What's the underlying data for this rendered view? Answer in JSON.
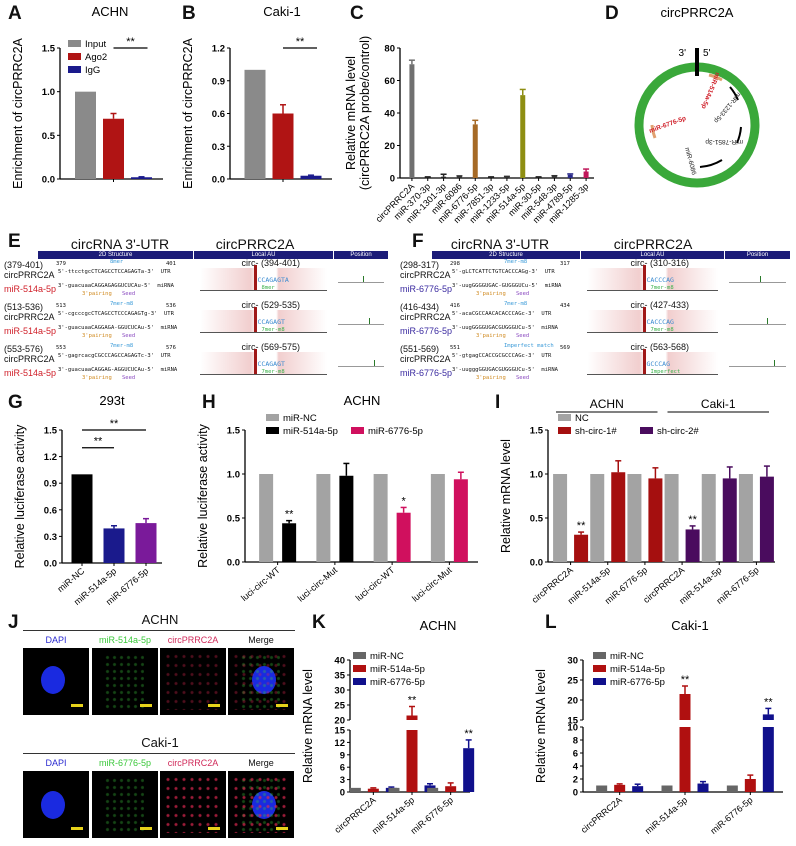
{
  "panel_letters": {
    "A": "A",
    "B": "B",
    "C": "C",
    "D": "D",
    "E": "E",
    "F": "F",
    "G": "G",
    "H": "H",
    "I": "I",
    "J": "J",
    "K": "K",
    "L": "L"
  },
  "chart_data": [
    {
      "id": "A",
      "type": "bar",
      "title": "ACHN",
      "ylabel": "Enrichment of circPRRC2A",
      "ylim": [
        0,
        1.5
      ],
      "yticks": [
        0,
        0.5,
        1.0,
        1.5
      ],
      "tick_format": 1,
      "categories": [
        ""
      ],
      "series": [
        {
          "name": "Input",
          "color": "#8a8a8a",
          "values": [
            1.0
          ],
          "errors": [
            0
          ]
        },
        {
          "name": "Ago2",
          "color": "#b01414",
          "values": [
            0.69
          ],
          "errors": [
            0.06
          ]
        },
        {
          "name": "IgG",
          "color": "#1a1a8c",
          "values": [
            0.02
          ],
          "errors": [
            0.005
          ]
        }
      ],
      "brackets": [
        {
          "from_bar": 1,
          "to_bar": 2,
          "y": 1.5,
          "label": "**"
        }
      ],
      "legend": "top-left"
    },
    {
      "id": "B",
      "type": "bar",
      "title": "Caki-1",
      "ylabel": "Enrichment of circPRRC2A",
      "ylim": [
        0,
        1.2
      ],
      "yticks": [
        0,
        0.3,
        0.6,
        0.9,
        1.2
      ],
      "tick_format": 1,
      "categories": [
        ""
      ],
      "series": [
        {
          "name": "Input",
          "color": "#8a8a8a",
          "values": [
            1.0
          ],
          "errors": [
            0
          ]
        },
        {
          "name": "Ago2",
          "color": "#b01414",
          "values": [
            0.6
          ],
          "errors": [
            0.08
          ]
        },
        {
          "name": "IgG",
          "color": "#1a1a8c",
          "values": [
            0.03
          ],
          "errors": [
            0.005
          ]
        }
      ],
      "brackets": [
        {
          "from_bar": 1,
          "to_bar": 2,
          "y": 1.2,
          "label": "**"
        }
      ],
      "legend": "none"
    },
    {
      "id": "C",
      "type": "bar",
      "title": "",
      "ylabel": "Relative mRNA level",
      "ylabel2": "(circPRRC2A probe/control)",
      "ylim": [
        0,
        80
      ],
      "yticks": [
        0,
        20,
        40,
        60,
        80
      ],
      "tick_format": 0,
      "categories": [
        "circPRRC2A",
        "miR-370-3p",
        "miR-1301-3p",
        "miR-6086",
        "miR-6776-5p",
        "miR-7851-3p",
        "miR-1233-5p",
        "miR-514a-5p",
        "miR-30-5p",
        "miR-548-3p",
        "miR-4789-5p",
        "miR-1285-3p"
      ],
      "series": [
        {
          "name": "",
          "colors": [
            "#707070",
            "#222",
            "#222",
            "#333",
            "#a66a26",
            "#222",
            "#333",
            "#8e8e12",
            "#222",
            "#333",
            "#2a2a8a",
            "#c0185a"
          ],
          "values": [
            70,
            0.5,
            0.8,
            1.0,
            33,
            0.5,
            0.7,
            51,
            0.5,
            1.0,
            2.0,
            4.0
          ],
          "errors": [
            2.5,
            0.2,
            1.5,
            0.3,
            2.5,
            0.2,
            0.3,
            3.5,
            0.2,
            0.4,
            0.5,
            1.5
          ]
        }
      ],
      "legend": "none"
    },
    {
      "id": "G",
      "type": "bar",
      "title": "293t",
      "ylabel": "Relative luciferase activity",
      "ylim": [
        0,
        1.5
      ],
      "yticks": [
        0,
        0.3,
        0.6,
        0.9,
        1.2,
        1.5
      ],
      "tick_format": 1,
      "categories": [
        "miR-NC",
        "miR-514a-5p",
        "miR-6776-5p"
      ],
      "series": [
        {
          "name": "",
          "colors": [
            "#000000",
            "#1a1a8c",
            "#7a1a9a"
          ],
          "values": [
            1.0,
            0.39,
            0.45
          ],
          "errors": [
            0,
            0.03,
            0.05
          ]
        }
      ],
      "brackets": [
        {
          "from_bar": 0,
          "to_bar": 2,
          "y": 1.5,
          "label": "**"
        },
        {
          "from_bar": 0,
          "to_bar": 1,
          "y": 1.3,
          "label": "**"
        }
      ],
      "legend": "none"
    },
    {
      "id": "H",
      "type": "bar",
      "title": "ACHN",
      "ylabel": "Relative luciferase activity",
      "ylim": [
        0,
        1.5
      ],
      "yticks": [
        0,
        0.5,
        1.0,
        1.5
      ],
      "tick_format": 1,
      "categories": [
        "luci-circ-WT",
        "luci-circ-Mut",
        "luci-circ-WT",
        "luci-circ-Mut"
      ],
      "series": [
        {
          "name": "miR-NC",
          "color": "#a3a3a3",
          "values": [
            1,
            1,
            1,
            1
          ],
          "errors": [
            0,
            0,
            0,
            0
          ]
        },
        {
          "name": "miR-514a-5p",
          "color": "#000000",
          "values": [
            0.44,
            0.98,
            null,
            null
          ],
          "errors": [
            0.03,
            0.14,
            null,
            null
          ],
          "stars": [
            "**",
            "",
            null,
            null
          ]
        },
        {
          "name": "miR-6776-5p",
          "color": "#d0105e",
          "values": [
            null,
            null,
            0.56,
            0.94
          ],
          "errors": [
            null,
            null,
            0.06,
            0.08
          ],
          "stars": [
            null,
            null,
            "*",
            ""
          ]
        }
      ],
      "legend": "top"
    },
    {
      "id": "I",
      "type": "bar",
      "title": "",
      "ylabel": "Relative mRNA level",
      "ylim": [
        0,
        1.5
      ],
      "yticks": [
        0,
        0.5,
        1.0,
        1.5
      ],
      "tick_format": 1,
      "categories": [
        "circPRRC2A",
        "miR-514a-5p",
        "miR-6776-5p",
        "circPRRC2A",
        "miR-514a-5p",
        "miR-6776-5p"
      ],
      "group_headers": [
        {
          "label": "ACHN",
          "from": 0,
          "to": 2
        },
        {
          "label": "Caki-1",
          "from": 3,
          "to": 5
        }
      ],
      "series": [
        {
          "name": "NC",
          "color": "#a3a3a3",
          "values": [
            1,
            1,
            1,
            1,
            1,
            1
          ],
          "errors": [
            0,
            0,
            0,
            0,
            0,
            0
          ]
        },
        {
          "name": "sh-circ-1#",
          "color": "#a50f0f",
          "values": [
            0.31,
            1.02,
            0.95,
            null,
            null,
            null
          ],
          "errors": [
            0.03,
            0.13,
            0.12,
            null,
            null,
            null
          ],
          "stars": [
            "**",
            "",
            "",
            null,
            null,
            null
          ]
        },
        {
          "name": "sh-circ-2#",
          "color": "#4a0c5e",
          "values": [
            null,
            null,
            null,
            0.37,
            0.95,
            0.97
          ],
          "errors": [
            null,
            null,
            null,
            0.04,
            0.13,
            0.12
          ],
          "stars": [
            null,
            null,
            null,
            "**",
            "",
            ""
          ]
        }
      ],
      "legend": "top"
    },
    {
      "id": "K",
      "type": "bar",
      "title": "ACHN",
      "ylabel": "Relative mRNA level",
      "y_segments": [
        [
          0,
          15
        ],
        [
          20,
          40
        ]
      ],
      "yticks": [
        0,
        3,
        6,
        9,
        12,
        15,
        20,
        25,
        30,
        35,
        40
      ],
      "tick_format": 0,
      "categories": [
        "circPRRC2A",
        "miR-514a-5p",
        "miR-6776-5p"
      ],
      "series": [
        {
          "name": "miR-NC",
          "color": "#666666",
          "values": [
            1,
            1,
            1
          ],
          "errors": [
            0,
            0,
            0
          ]
        },
        {
          "name": "miR-514a-5p",
          "color": "#b01010",
          "values": [
            0.8,
            21.5,
            1.4
          ],
          "errors": [
            0.2,
            3.0,
            0.8
          ],
          "stars": [
            "",
            "**",
            ""
          ]
        },
        {
          "name": "miR-6776-5p",
          "color": "#10108c",
          "values": [
            1.0,
            1.6,
            10.6
          ],
          "errors": [
            0.2,
            0.4,
            2.0
          ],
          "stars": [
            "",
            "",
            "**"
          ]
        }
      ],
      "legend": "top-left"
    },
    {
      "id": "L",
      "type": "bar",
      "title": "Caki-1",
      "ylabel": "Relative mRNA level",
      "y_segments": [
        [
          0,
          10
        ],
        [
          15,
          30
        ]
      ],
      "yticks": [
        0,
        2,
        4,
        6,
        8,
        10,
        15,
        20,
        25,
        30
      ],
      "tick_format": 0,
      "categories": [
        "circPRRC2A",
        "miR-514a-5p",
        "miR-6776-5p"
      ],
      "series": [
        {
          "name": "miR-NC",
          "color": "#666666",
          "values": [
            1,
            1,
            1
          ],
          "errors": [
            0,
            0,
            0
          ]
        },
        {
          "name": "miR-514a-5p",
          "color": "#b01010",
          "values": [
            1.1,
            21.5,
            2.0
          ],
          "errors": [
            0.15,
            2.0,
            0.6
          ],
          "stars": [
            "",
            "**",
            ""
          ]
        },
        {
          "name": "miR-6776-5p",
          "color": "#10108c",
          "values": [
            0.9,
            1.3,
            16.4
          ],
          "errors": [
            0.3,
            0.3,
            1.5
          ],
          "stars": [
            "",
            "",
            "**"
          ]
        }
      ],
      "legend": "top-left"
    }
  ],
  "panelD": {
    "title": "circPRRC2A",
    "end3": "3'",
    "end5": "5'",
    "mirnas": [
      {
        "name": "miR-514a-5p",
        "color": "#d0202a"
      },
      {
        "name": "miR-1233-5p",
        "color": "#222"
      },
      {
        "name": "miR-7851-3p",
        "color": "#222"
      },
      {
        "name": "miR-6086",
        "color": "#222"
      },
      {
        "name": "miR-6776-5p",
        "color": "#d0202a"
      }
    ],
    "ring_color": "#3aa83a"
  },
  "panelE": {
    "title_left": "circRNA 3'-UTR",
    "title_right": "circPRRC2A",
    "headers": [
      "2D Structure",
      "Local AU",
      "Position"
    ],
    "mirna_color": "#d0202a",
    "rows": [
      {
        "range": "(379-401)",
        "circ": "circPRRC2A",
        "mir": "miR-514a-5p",
        "start": "379",
        "end": "401",
        "site": "8mer",
        "utr": "5'-ttcctgcCTCAGCCTCCAGAGTa-3'  UTR",
        "mirna": "3'-guacuaaCAGGAGAGGUCUCAu-5'  miRNA",
        "pairing": "3'pairing",
        "seed": "Seed",
        "local": "circ- (394-401)",
        "local_seq": "CCAGAGTA",
        "local_type": "8mer"
      },
      {
        "range": "(513-536)",
        "circ": "circPRRC2A",
        "mir": "miR-514a-5p",
        "start": "513",
        "end": "536",
        "site": "7mer-m8",
        "utr": "5'-cgcccgcCTCAGCCTCCCAGAGTg-3'  UTR",
        "mirna": "3'-guacuaaCAGGAGA-GGUCUCAu-5'  miRNA",
        "pairing": "3'pairing",
        "seed": "Seed",
        "local": "circ- (529-535)",
        "local_seq": "CCAGAGT",
        "local_type": "7mer-m8"
      },
      {
        "range": "(553-576)",
        "circ": "circPRRC2A",
        "mir": "miR-514a-5p",
        "start": "553",
        "end": "576",
        "site": "7mer-m8",
        "utr": "5'-gagrcacgCGCCCAGCCAGAGTc-3'  UTR",
        "mirna": "3'-guacuaaCAGGAG-AGGUCUCAu-5'  miRNA",
        "pairing": "3'pairing",
        "seed": "Seed",
        "local": "circ- (569-575)",
        "local_seq": "CCAGAGT",
        "local_type": "7mer-m8"
      }
    ]
  },
  "panelF": {
    "title_left": "circRNA 3'-UTR",
    "title_right": "circPRRC2A",
    "headers": [
      "2D Structure",
      "Local AU",
      "Position"
    ],
    "mirna_color": "#3a2aa0",
    "rows": [
      {
        "range": "(298-317)",
        "circ": "circPRRC2A",
        "mir": "miR-6776-5p",
        "start": "298",
        "end": "317",
        "site": "7mer-m8",
        "utr": "5'-gLCTCATTCTGTCACCCAGg-3'  UTR",
        "mirna": "3'-uugGGGGUGAC-GUGGGUCu-5'  miRNA",
        "pairing": "3'pairing",
        "seed": "Seed",
        "local": "circ- (310-316)",
        "local_seq": "CACCCAG",
        "local_type": "7mer-m8"
      },
      {
        "range": "(416-434)",
        "circ": "circPRRC2A",
        "mir": "miR-6776-5p",
        "start": "416",
        "end": "434",
        "site": "7mer-m8",
        "utr": "5'-acaCGCCAACACACCCAGc-3'  UTR",
        "mirna": "3'-uugGGGGUGACGUGGGUCu-5'  miRNA",
        "pairing": "3'pairing",
        "seed": "Seed",
        "local": "circ- (427-433)",
        "local_seq": "CACCCAG",
        "local_type": "7mer-m8"
      },
      {
        "range": "(551-569)",
        "circ": "circPRRC2A",
        "mir": "miR-6776-5p",
        "start": "551",
        "end": "569",
        "site": "Imperfect match",
        "utr": "5'-gtgagCCACCGCGCCCAGc-3'  UTR",
        "mirna": "3'-uugggGGUGACGUGGGUCu-5'  miRNA",
        "pairing": "3'pairing",
        "seed": "Seed",
        "local": "circ- (563-568)",
        "local_seq": "GCCCAG",
        "local_type": "Imperfect"
      }
    ]
  },
  "panelJ": {
    "groups": [
      {
        "cell": "ACHN",
        "channels": [
          "DAPI",
          "miR-514a-5p",
          "circPRRC2A",
          "Merge"
        ]
      },
      {
        "cell": "Caki-1",
        "channels": [
          "DAPI",
          "miR-6776-5p",
          "circPRRC2A",
          "Merge"
        ]
      }
    ],
    "channel_colors": [
      "#2a2ad0",
      "#3ac83a",
      "#d02a5a",
      "#111111"
    ]
  }
}
